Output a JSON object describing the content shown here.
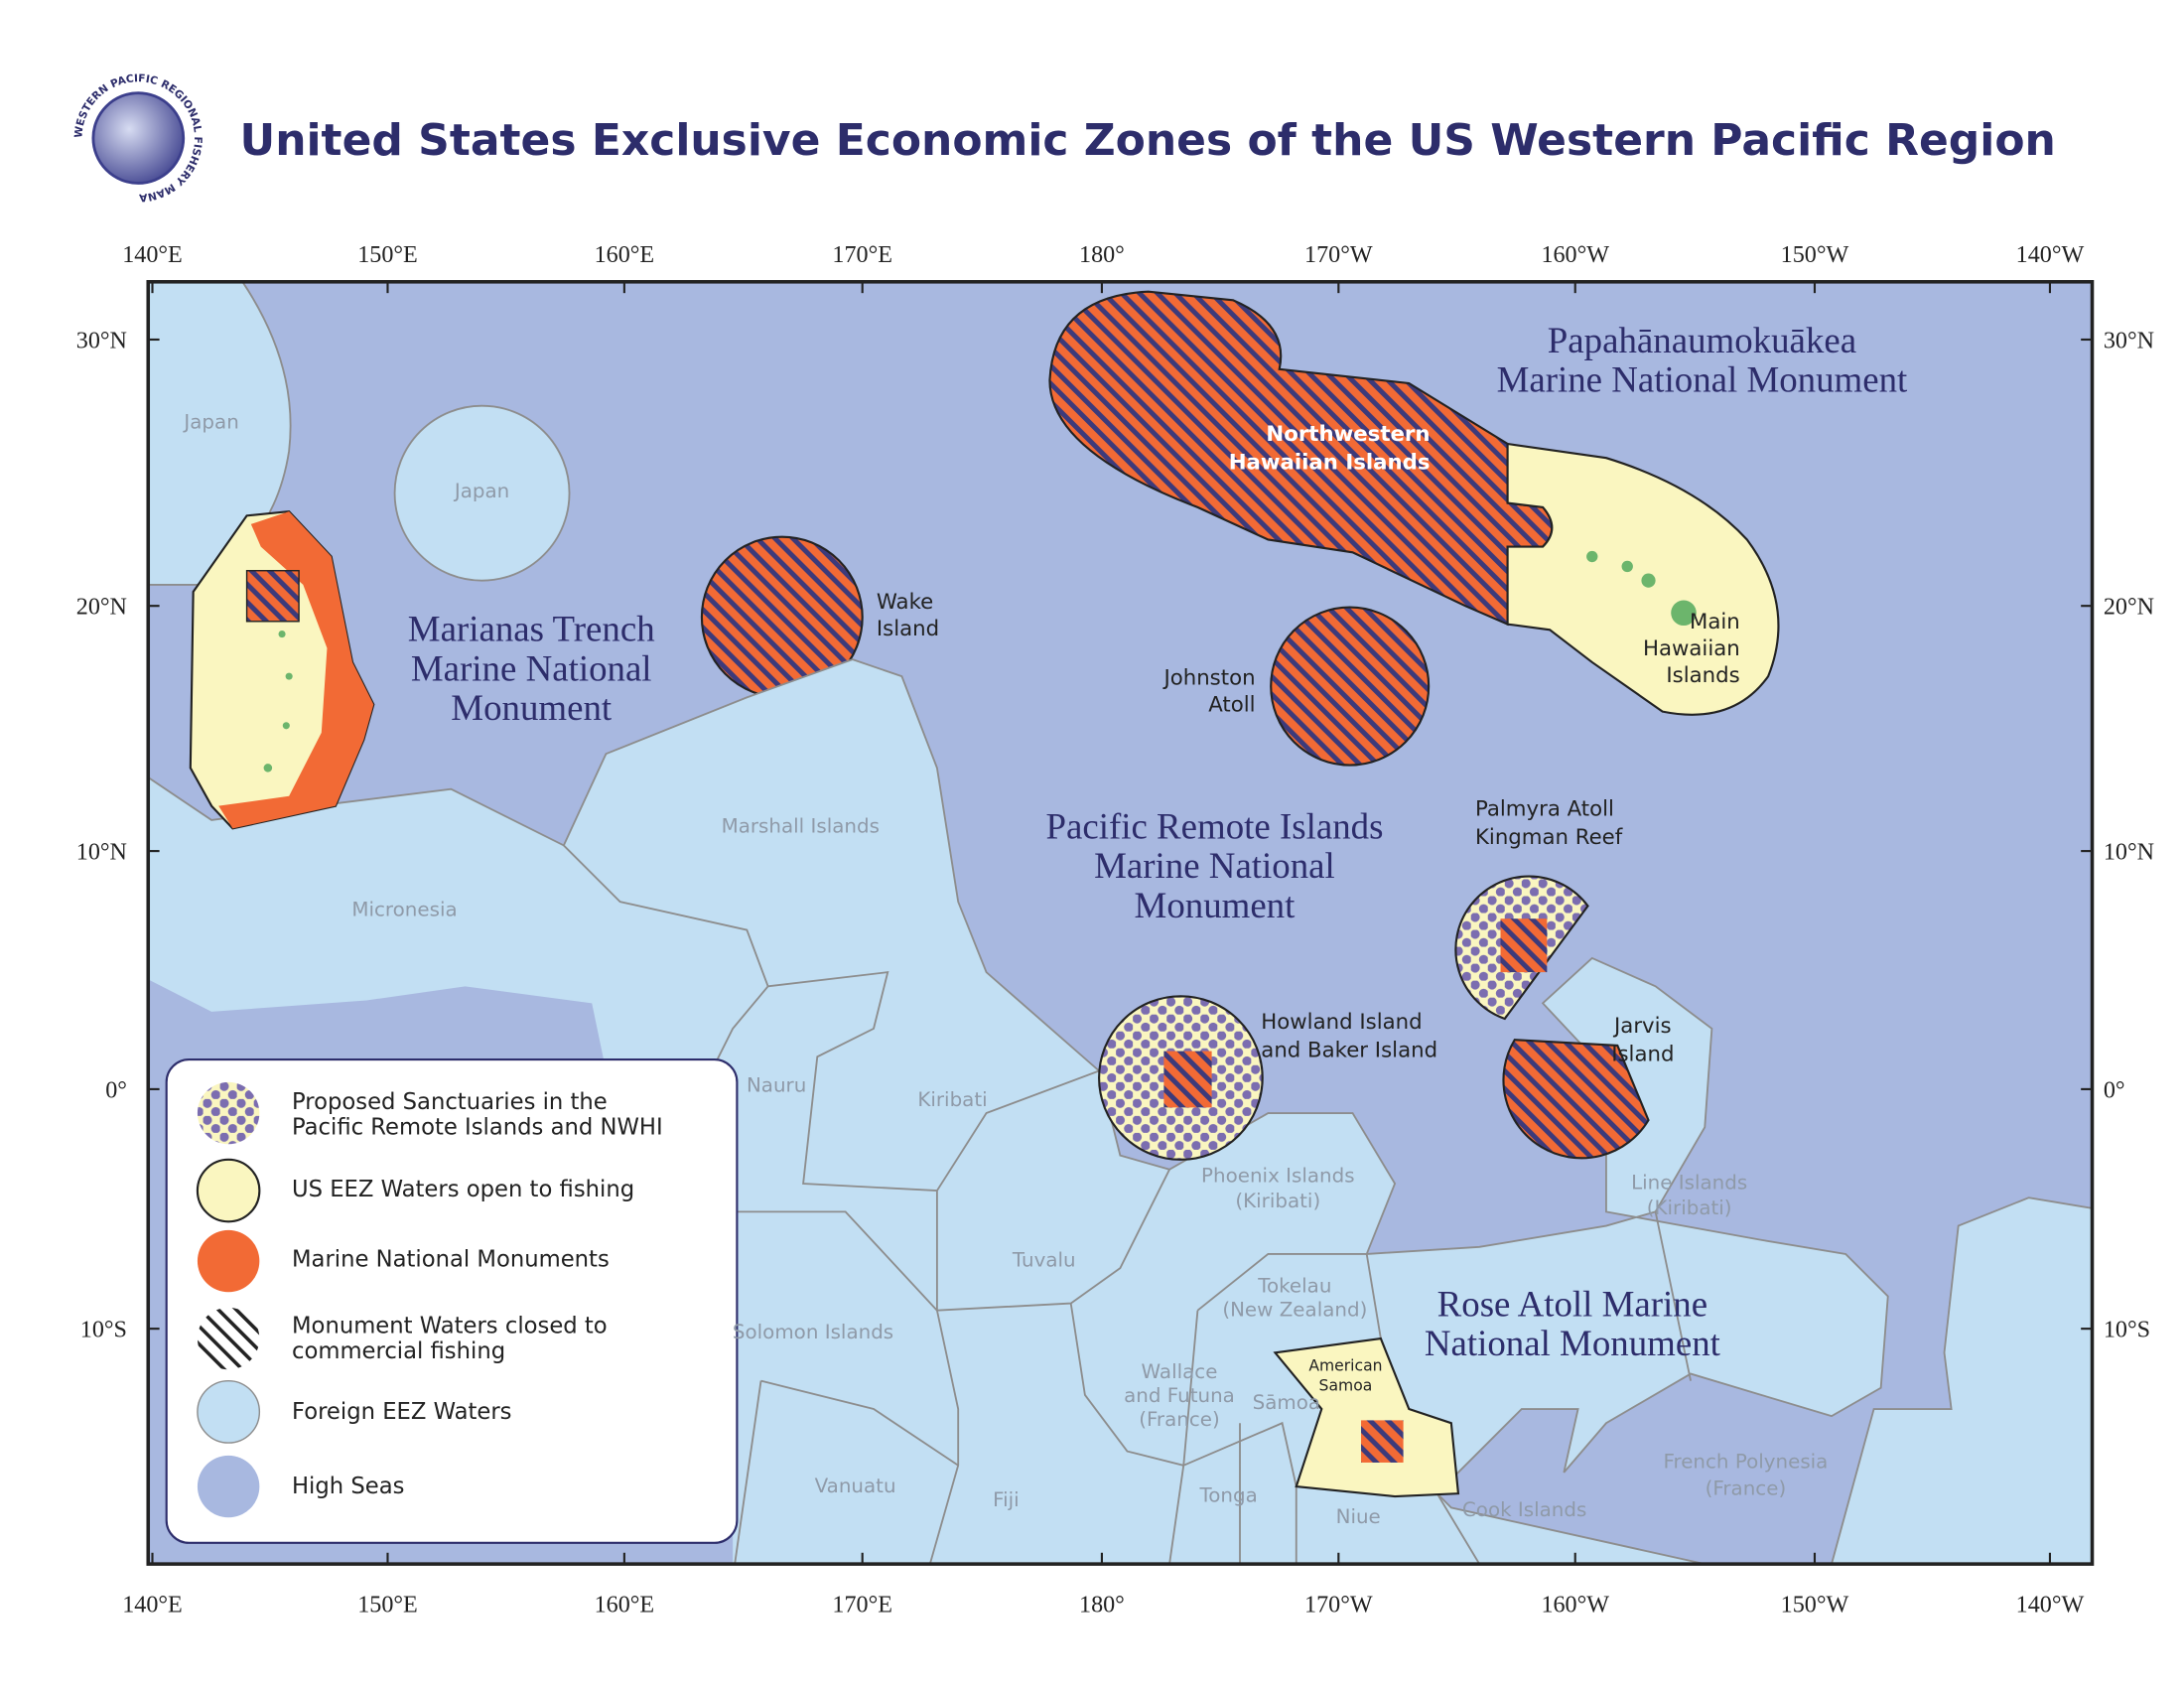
{
  "title": "United States Exclusive Economic Zones of the US Western Pacific Region",
  "logo_text": "WESTERN PACIFIC REGIONAL FISHERY MANAGEMENT COUNCIL",
  "longitude_labels": [
    "140°E",
    "150°E",
    "160°E",
    "170°E",
    "180°",
    "170°W",
    "160°W",
    "150°W",
    "140°W"
  ],
  "latitude_labels": [
    "30°N",
    "20°N",
    "10°N",
    "0°",
    "10°S"
  ],
  "monuments": {
    "marianas": [
      "Marianas Trench",
      "Marine National",
      "Monument"
    ],
    "papahanaumokuakea": [
      "Papahānaumokuākea",
      "Marine National Monument"
    ],
    "pacific_remote": [
      "Pacific Remote Islands",
      "Marine National",
      "Monument"
    ],
    "rose_atoll": [
      "Rose Atoll Marine",
      "National Monument"
    ]
  },
  "us_areas": {
    "wake": [
      "Wake",
      "Island"
    ],
    "nwhi": [
      "Northwestern",
      "Hawaiian Islands"
    ],
    "main_hawaiian": [
      "Main",
      "Hawaiian",
      "Islands"
    ],
    "johnston": [
      "Johnston",
      "Atoll"
    ],
    "palmyra": [
      "Palmyra Atoll",
      "Kingman Reef"
    ],
    "howland": [
      "Howland Island",
      "and Baker Island"
    ],
    "jarvis": [
      "Jarvis",
      "Island"
    ],
    "american_samoa": [
      "American",
      "Samoa"
    ]
  },
  "foreign_eez": {
    "japan_1": [
      "Japan"
    ],
    "japan_2": [
      "Japan"
    ],
    "marshall": [
      "Marshall Islands"
    ],
    "micronesia": [
      "Micronesia"
    ],
    "nauru": [
      "Nauru"
    ],
    "kiribati": [
      "Kiribati"
    ],
    "solomon": [
      "Solomon Islands"
    ],
    "vanuatu": [
      "Vanuatu"
    ],
    "fiji": [
      "Fiji"
    ],
    "tuvalu": [
      "Tuvalu"
    ],
    "phoenix": [
      "Phoenix Islands",
      "(Kiribati)"
    ],
    "tokelau": [
      "Tokelau",
      "(New Zealand)"
    ],
    "wallis": [
      "Wallace",
      "and Futuna",
      "(France)"
    ],
    "samoa": [
      "Sāmoa"
    ],
    "tonga": [
      "Tonga"
    ],
    "niue": [
      "Niue"
    ],
    "cook": [
      "Cook Islands"
    ],
    "french_polynesia": [
      "French Polynesia",
      "(France)"
    ],
    "line": [
      "Line Islands",
      "(Kiribati)"
    ]
  },
  "legend": [
    [
      "Proposed Sanctuaries in the",
      "Pacific Remote Islands and NWHI"
    ],
    [
      "US EEZ Waters open to fishing"
    ],
    [
      "Marine National Monuments"
    ],
    [
      "Monument Waters closed to",
      "commercial fishing"
    ],
    [
      "Foreign EEZ Waters"
    ],
    [
      "High Seas"
    ]
  ]
}
